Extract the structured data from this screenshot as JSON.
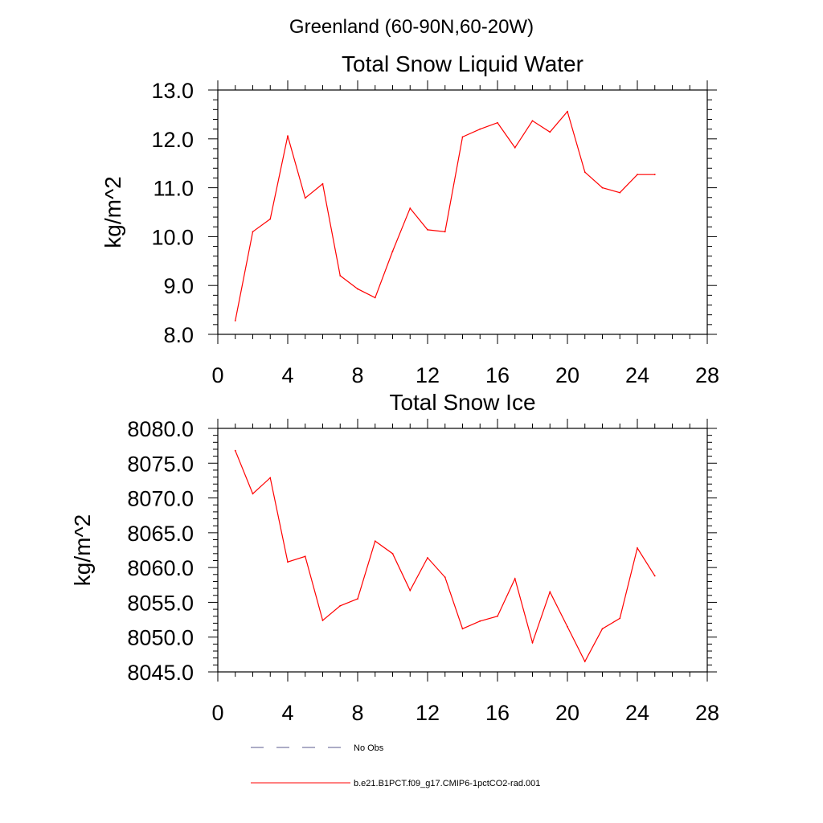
{
  "suptitle": "Greenland (60-90N,60-20W)",
  "colors": {
    "series": "#ff0000",
    "axes": "#000000",
    "legend_dash": "#5a5a8c"
  },
  "legend": {
    "entries": [
      {
        "label": "No Obs",
        "style": "dashed"
      },
      {
        "label": "b.e21.B1PCT.f09_g17.CMIP6-1pctCO2-rad.001",
        "style": "solid"
      }
    ]
  },
  "chart_data": [
    {
      "type": "line",
      "title": "Total Snow Liquid Water",
      "ylabel": "kg/m^2",
      "xlabel": "",
      "xlim": [
        0,
        28
      ],
      "ylim": [
        8,
        13
      ],
      "xticks": [
        "0",
        "4",
        "8",
        "12",
        "16",
        "20",
        "24",
        "28"
      ],
      "yticks": [
        "8.0",
        "9.0",
        "10.0",
        "11.0",
        "12.0",
        "13.0"
      ],
      "series": [
        {
          "x": [
            1,
            2,
            3,
            4,
            5,
            6,
            7,
            8,
            9,
            10,
            11,
            12,
            13,
            14,
            15,
            16,
            17,
            18,
            19,
            20,
            21,
            22,
            23,
            24,
            25
          ],
          "values": [
            8.28,
            10.1,
            10.36,
            12.06,
            10.79,
            11.08,
            9.2,
            8.93,
            8.75,
            9.7,
            10.58,
            10.14,
            10.1,
            12.04,
            12.2,
            12.33,
            11.82,
            12.37,
            12.14,
            12.56,
            11.32,
            11.0,
            10.9,
            11.27,
            11.27
          ]
        }
      ]
    },
    {
      "type": "line",
      "title": "Total Snow Ice",
      "ylabel": "kg/m^2",
      "xlabel": "",
      "xlim": [
        0,
        28
      ],
      "ylim": [
        8045,
        8080
      ],
      "xticks": [
        "0",
        "4",
        "8",
        "12",
        "16",
        "20",
        "24",
        "28"
      ],
      "yticks": [
        "8045.0",
        "8050.0",
        "8055.0",
        "8060.0",
        "8065.0",
        "8070.0",
        "8075.0",
        "8080.0"
      ],
      "series": [
        {
          "x": [
            1,
            2,
            3,
            4,
            5,
            6,
            7,
            8,
            9,
            10,
            11,
            12,
            13,
            14,
            15,
            16,
            17,
            18,
            19,
            20,
            21,
            22,
            23,
            24,
            25
          ],
          "values": [
            8076.8,
            8070.6,
            8072.9,
            8060.8,
            8061.6,
            8052.4,
            8054.5,
            8055.5,
            8063.8,
            8062.0,
            8056.7,
            8061.4,
            8058.6,
            8051.2,
            8052.3,
            8053.0,
            8058.4,
            8049.2,
            8056.5,
            8051.5,
            8046.5,
            8051.2,
            8052.7,
            8062.8,
            8058.8
          ]
        }
      ]
    }
  ]
}
